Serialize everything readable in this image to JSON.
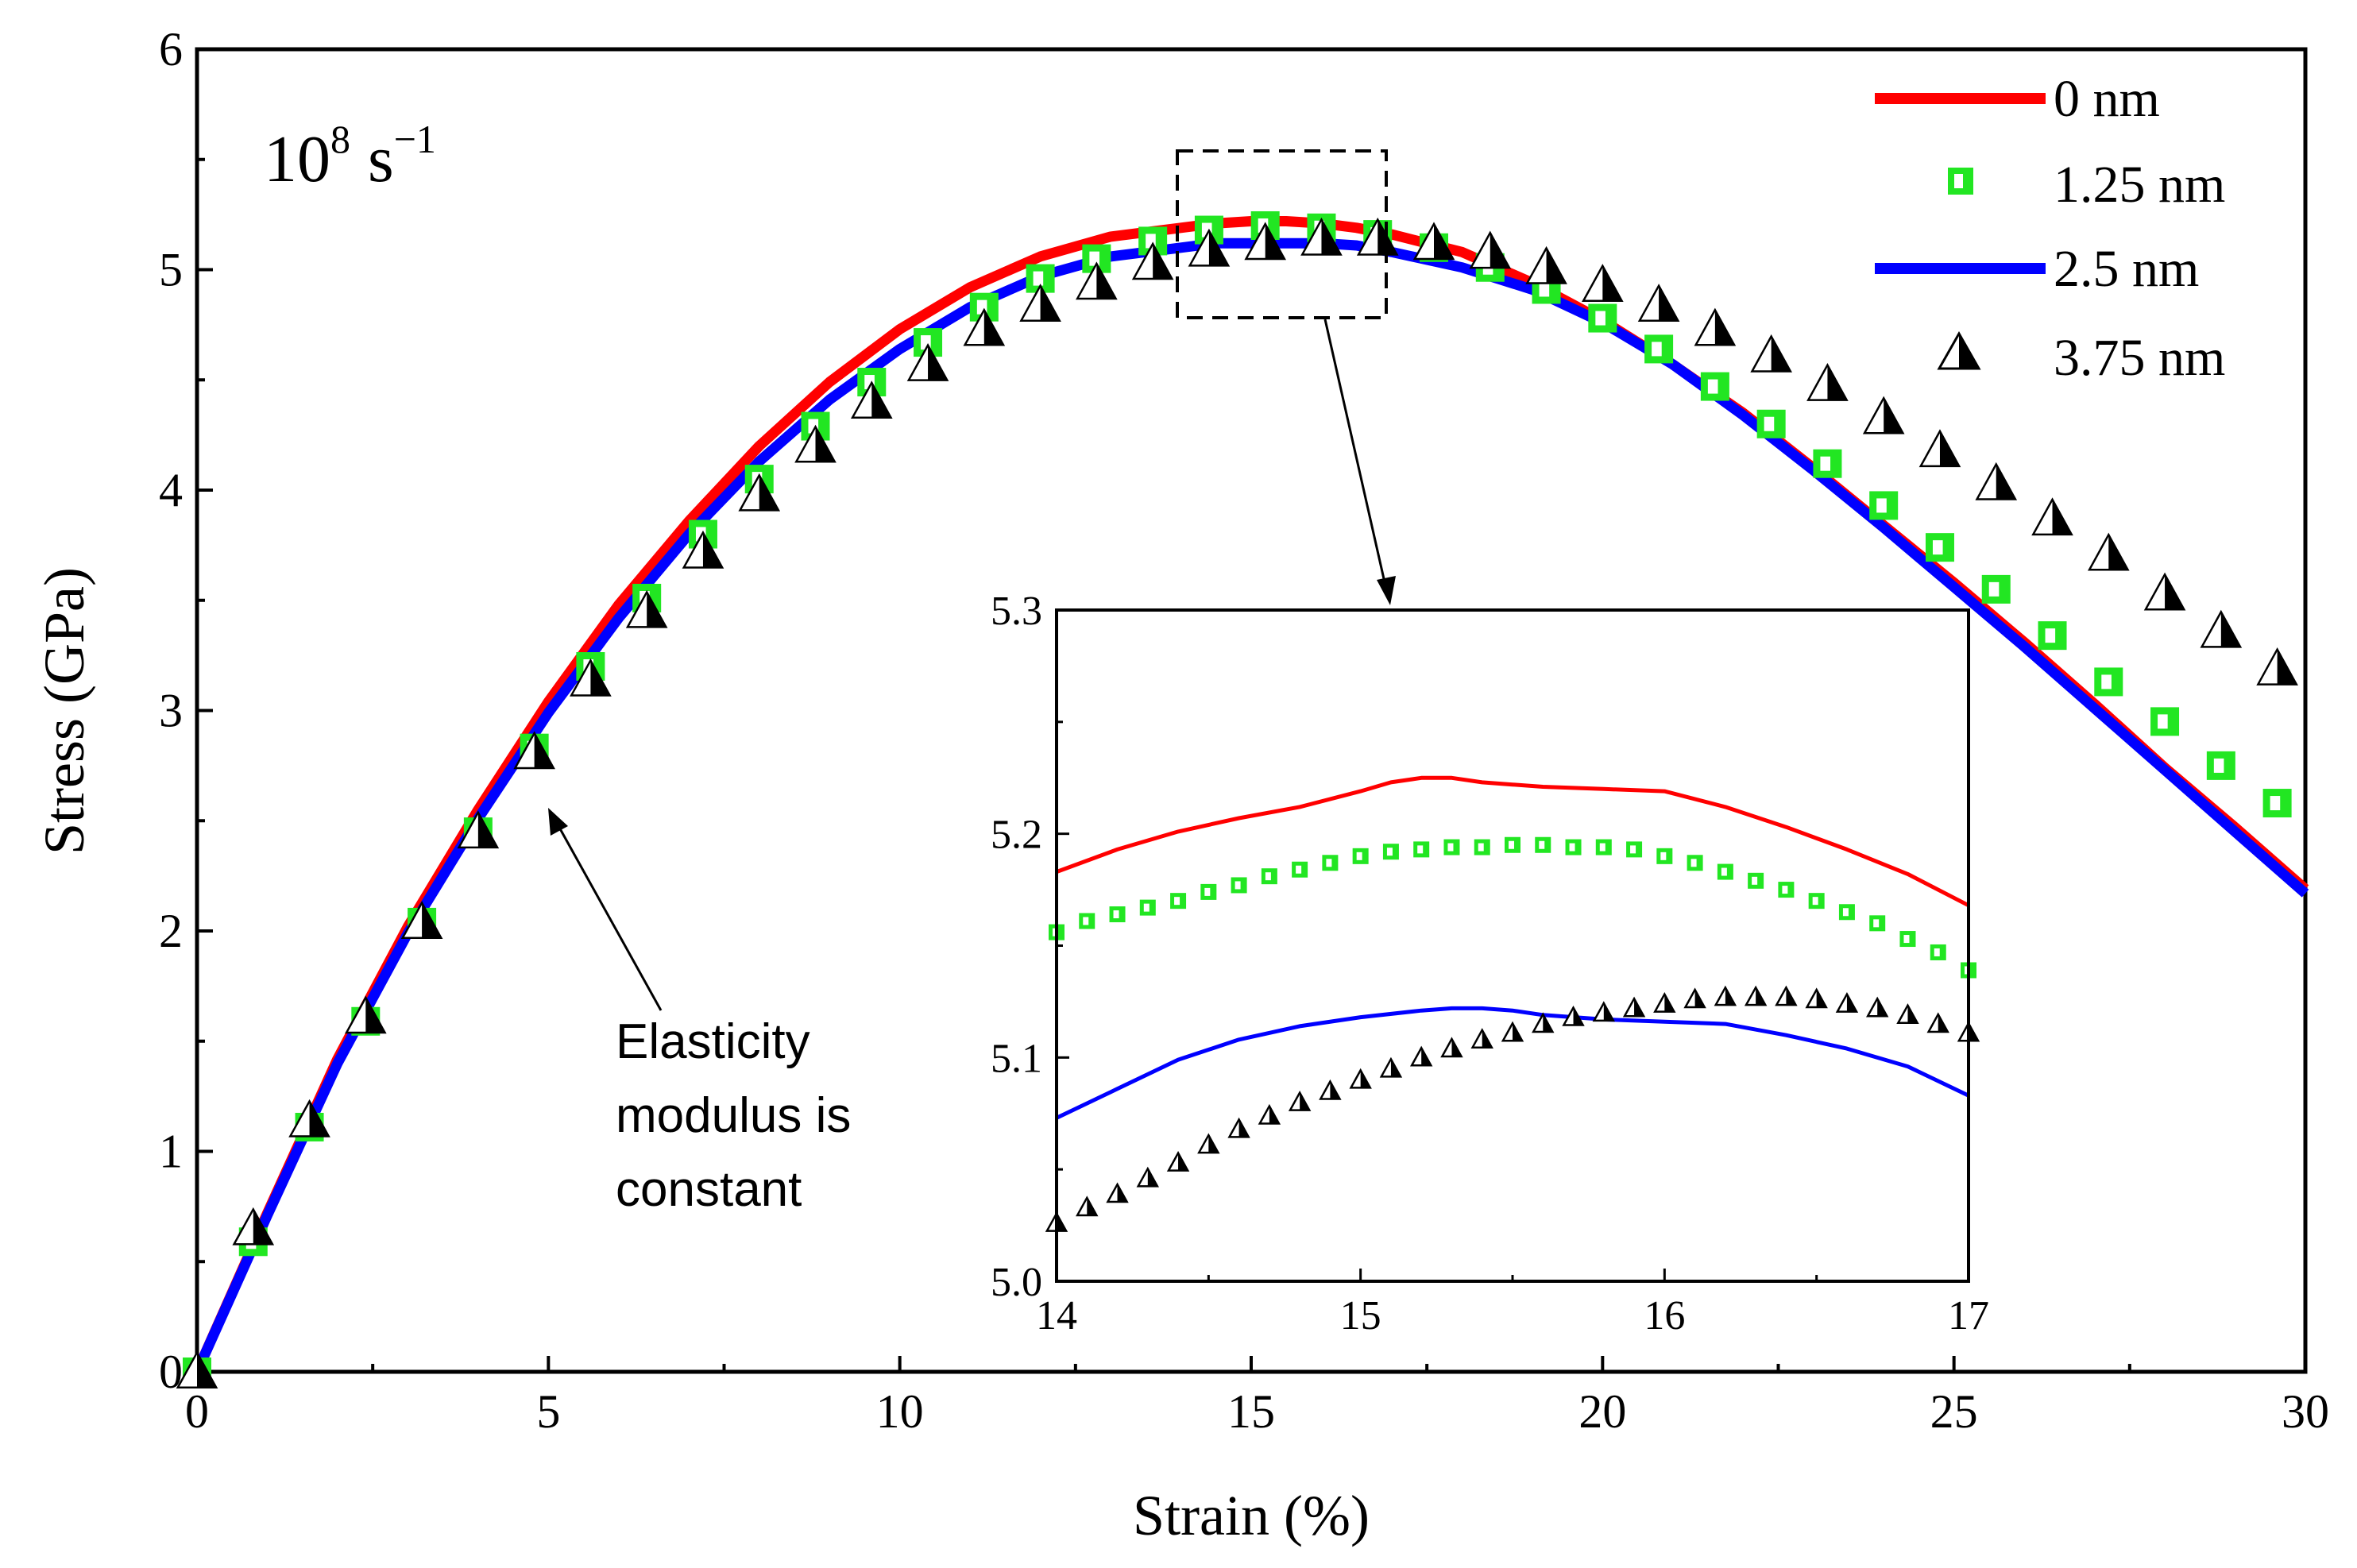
{
  "chart_data": [
    {
      "type": "line",
      "xlabel": "Strain (%)",
      "ylabel": "Stress (GPa)",
      "xlim": [
        0,
        30
      ],
      "ylim": [
        0,
        6
      ],
      "x_ticks": [
        0,
        5,
        10,
        15,
        20,
        25,
        30
      ],
      "y_ticks": [
        0,
        1,
        2,
        3,
        4,
        5,
        6
      ],
      "rate_label": {
        "base": "10",
        "exponent": "8",
        "unit": "s",
        "unit_exponent": "−1"
      },
      "annotation": [
        "Elasticity",
        "modulus is",
        "constant"
      ],
      "legend_position": "top-right",
      "series": [
        {
          "name": "0 nm",
          "style": "line",
          "color": "#ff0000",
          "x": [
            0,
            1,
            2,
            3,
            4,
            5,
            6,
            7,
            8,
            9,
            10,
            11,
            12,
            13,
            14,
            14.5,
            15,
            15.5,
            16,
            16.5,
            17,
            18,
            19,
            20,
            21,
            22,
            23,
            24,
            25,
            26,
            27,
            28,
            29,
            30
          ],
          "y": [
            0,
            0.72,
            1.42,
            2.02,
            2.55,
            3.04,
            3.48,
            3.86,
            4.2,
            4.49,
            4.73,
            4.92,
            5.06,
            5.15,
            5.19,
            5.21,
            5.22,
            5.22,
            5.21,
            5.19,
            5.16,
            5.08,
            4.94,
            4.77,
            4.57,
            4.35,
            4.1,
            3.84,
            3.58,
            3.31,
            3.03,
            2.74,
            2.47,
            2.19
          ]
        },
        {
          "name": "1.25 nm",
          "style": "square",
          "color": "#22e622",
          "x": [
            0,
            0.8,
            1.6,
            2.4,
            3.2,
            4.0,
            4.8,
            5.6,
            6.4,
            7.2,
            8.0,
            8.8,
            9.6,
            10.4,
            11.2,
            12.0,
            12.8,
            13.6,
            14.4,
            15.2,
            16.0,
            16.8,
            17.6,
            18.4,
            19.2,
            20.0,
            20.8,
            21.6,
            22.4,
            23.2,
            24.0,
            24.8,
            25.6,
            26.4,
            27.2,
            28.0,
            28.8,
            29.6
          ],
          "y": [
            0,
            0.59,
            1.11,
            1.59,
            2.04,
            2.45,
            2.83,
            3.2,
            3.51,
            3.8,
            4.05,
            4.29,
            4.49,
            4.67,
            4.83,
            4.96,
            5.05,
            5.13,
            5.18,
            5.2,
            5.19,
            5.16,
            5.1,
            5.01,
            4.91,
            4.78,
            4.64,
            4.47,
            4.3,
            4.12,
            3.93,
            3.74,
            3.55,
            3.34,
            3.13,
            2.95,
            2.75,
            2.58
          ]
        },
        {
          "name": "2.5 nm",
          "style": "line",
          "color": "#0000ff",
          "x": [
            0,
            1,
            2,
            3,
            4,
            5,
            6,
            7,
            8,
            9,
            10,
            11,
            12,
            13,
            14,
            14.5,
            15,
            15.5,
            16,
            16.5,
            17,
            18,
            19,
            20,
            21,
            22,
            23,
            24,
            25,
            26,
            27,
            28,
            29,
            30
          ],
          "y": [
            0,
            0.71,
            1.4,
            1.99,
            2.51,
            2.99,
            3.42,
            3.8,
            4.13,
            4.41,
            4.64,
            4.83,
            4.97,
            5.06,
            5.1,
            5.12,
            5.12,
            5.12,
            5.12,
            5.11,
            5.08,
            5.01,
            4.91,
            4.76,
            4.57,
            4.34,
            4.09,
            3.83,
            3.56,
            3.29,
            3.01,
            2.73,
            2.45,
            2.17
          ]
        },
        {
          "name": "3.75 nm",
          "style": "triangle",
          "color": "#000000",
          "x": [
            0,
            0.8,
            1.6,
            2.4,
            3.2,
            4.0,
            4.8,
            5.6,
            6.4,
            7.2,
            8.0,
            8.8,
            9.6,
            10.4,
            11.2,
            12.0,
            12.8,
            13.6,
            14.4,
            15.2,
            16.0,
            16.8,
            17.6,
            18.4,
            19.2,
            20.0,
            20.8,
            21.6,
            22.4,
            23.2,
            24.0,
            24.8,
            25.6,
            26.4,
            27.2,
            28.0,
            28.8,
            29.6
          ],
          "y": [
            0,
            0.65,
            1.14,
            1.61,
            2.04,
            2.45,
            2.81,
            3.14,
            3.45,
            3.72,
            3.98,
            4.2,
            4.4,
            4.57,
            4.73,
            4.84,
            4.94,
            5.03,
            5.09,
            5.12,
            5.14,
            5.14,
            5.12,
            5.08,
            5.01,
            4.93,
            4.84,
            4.73,
            4.61,
            4.48,
            4.33,
            4.18,
            4.03,
            3.87,
            3.71,
            3.53,
            3.36,
            3.19
          ]
        }
      ]
    },
    {
      "type": "line",
      "inset": true,
      "xlim": [
        14,
        17
      ],
      "ylim": [
        5.0,
        5.3
      ],
      "x_ticks": [
        14,
        15,
        16,
        17
      ],
      "y_ticks": [
        "5.0",
        "5.1",
        "5.2",
        "5.3"
      ],
      "series": [
        {
          "name": "0 nm",
          "style": "line",
          "color": "#ff0000",
          "x": [
            14,
            14.2,
            14.4,
            14.6,
            14.8,
            15.0,
            15.1,
            15.2,
            15.3,
            15.4,
            15.5,
            15.6,
            15.8,
            16.0,
            16.2,
            16.4,
            16.6,
            16.8,
            17.0
          ],
          "y": [
            5.183,
            5.193,
            5.201,
            5.207,
            5.212,
            5.219,
            5.223,
            5.225,
            5.225,
            5.223,
            5.222,
            5.221,
            5.22,
            5.219,
            5.212,
            5.203,
            5.193,
            5.182,
            5.168
          ]
        },
        {
          "name": "1.25 nm",
          "style": "square",
          "color": "#22e622",
          "x": [
            14,
            14.1,
            14.2,
            14.3,
            14.4,
            14.5,
            14.6,
            14.7,
            14.8,
            14.9,
            15.0,
            15.1,
            15.2,
            15.3,
            15.4,
            15.5,
            15.6,
            15.7,
            15.8,
            15.9,
            16.0,
            16.1,
            16.2,
            16.3,
            16.4,
            16.5,
            16.6,
            16.7,
            16.8,
            16.9,
            17.0
          ],
          "y": [
            5.156,
            5.161,
            5.164,
            5.167,
            5.17,
            5.174,
            5.177,
            5.181,
            5.184,
            5.187,
            5.19,
            5.192,
            5.193,
            5.194,
            5.194,
            5.195,
            5.195,
            5.194,
            5.194,
            5.193,
            5.19,
            5.187,
            5.183,
            5.179,
            5.175,
            5.17,
            5.165,
            5.16,
            5.153,
            5.147,
            5.139
          ]
        },
        {
          "name": "2.5 nm",
          "style": "line",
          "color": "#0000ff",
          "x": [
            14,
            14.2,
            14.4,
            14.6,
            14.8,
            15.0,
            15.2,
            15.3,
            15.4,
            15.5,
            15.6,
            15.8,
            16.0,
            16.2,
            16.4,
            16.6,
            16.8,
            17.0
          ],
          "y": [
            5.073,
            5.086,
            5.099,
            5.108,
            5.114,
            5.118,
            5.121,
            5.122,
            5.122,
            5.121,
            5.119,
            5.117,
            5.116,
            5.115,
            5.11,
            5.104,
            5.096,
            5.083
          ]
        },
        {
          "name": "3.75 nm",
          "style": "triangle",
          "color": "#000000",
          "x": [
            14,
            14.1,
            14.2,
            14.3,
            14.4,
            14.5,
            14.6,
            14.7,
            14.8,
            14.9,
            15.0,
            15.1,
            15.2,
            15.3,
            15.4,
            15.5,
            15.6,
            15.7,
            15.8,
            15.9,
            16.0,
            16.1,
            16.2,
            16.3,
            16.4,
            16.5,
            16.6,
            16.7,
            16.8,
            16.9,
            17.0
          ],
          "y": [
            5.026,
            5.033,
            5.039,
            5.046,
            5.053,
            5.061,
            5.068,
            5.074,
            5.08,
            5.085,
            5.09,
            5.095,
            5.1,
            5.104,
            5.108,
            5.111,
            5.115,
            5.118,
            5.12,
            5.122,
            5.124,
            5.126,
            5.127,
            5.127,
            5.127,
            5.126,
            5.124,
            5.122,
            5.119,
            5.115,
            5.111
          ]
        }
      ]
    }
  ]
}
